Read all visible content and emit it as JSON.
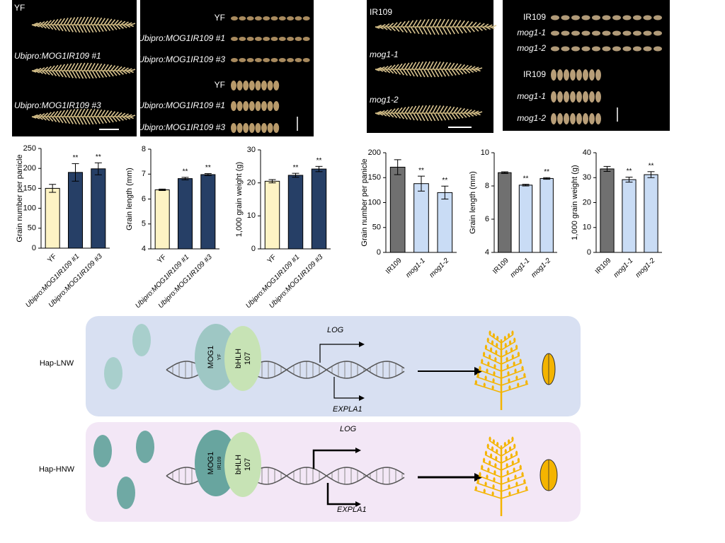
{
  "chart_data": [
    {
      "type": "bar",
      "ylabel": "Grain number per panicle",
      "categories": [
        "YF",
        "Ubipro:MOG1IR109 #1",
        "Ubipro:MOG1IR109 #3"
      ],
      "values": [
        150,
        190,
        199
      ],
      "errors": [
        10,
        22,
        15
      ],
      "significance": [
        null,
        "**",
        "**"
      ],
      "colors": [
        "#fdf3c4",
        "#263f66",
        "#263f66"
      ],
      "ylim": [
        0,
        250
      ],
      "yticks": [
        0,
        50,
        100,
        150,
        200,
        250
      ]
    },
    {
      "type": "bar",
      "ylabel": "Grain length (mm)",
      "categories": [
        "YF",
        "Ubipro:MOG1IR109 #1",
        "Ubipro:MOG1IR109 #3"
      ],
      "values": [
        6.37,
        6.82,
        6.98
      ],
      "errors": [
        0.03,
        0.05,
        0.04
      ],
      "significance": [
        null,
        "**",
        "**"
      ],
      "colors": [
        "#fdf3c4",
        "#263f66",
        "#263f66"
      ],
      "ylim": [
        4,
        8
      ],
      "yticks": [
        4,
        5,
        6,
        7,
        8
      ]
    },
    {
      "type": "bar",
      "ylabel": "1,000 grain weight (g)",
      "categories": [
        "YF",
        "Ubipro:MOG1IR109 #1",
        "Ubipro:MOG1IR109 #3"
      ],
      "values": [
        20.5,
        22.3,
        24.2
      ],
      "errors": [
        0.5,
        0.6,
        0.8
      ],
      "significance": [
        null,
        "**",
        "**"
      ],
      "colors": [
        "#fdf3c4",
        "#263f66",
        "#263f66"
      ],
      "ylim": [
        0,
        30
      ],
      "yticks": [
        0,
        10,
        20,
        30
      ]
    },
    {
      "type": "bar",
      "ylabel": "Grain number per panicle",
      "categories": [
        "IR109",
        "mog1-1",
        "mog1-2"
      ],
      "values": [
        171,
        138,
        120
      ],
      "errors": [
        15,
        15,
        13
      ],
      "significance": [
        null,
        "**",
        "**"
      ],
      "colors": [
        "#707070",
        "#c9dcf5",
        "#c9dcf5"
      ],
      "ylim": [
        0,
        200
      ],
      "yticks": [
        0,
        50,
        100,
        150,
        200
      ]
    },
    {
      "type": "bar",
      "ylabel": "Grain length (mm)",
      "categories": [
        "IR109",
        "mog1-1",
        "mog1-2"
      ],
      "values": [
        8.8,
        8.05,
        8.45
      ],
      "errors": [
        0.05,
        0.05,
        0.05
      ],
      "significance": [
        null,
        "**",
        "**"
      ],
      "colors": [
        "#707070",
        "#c9dcf5",
        "#c9dcf5"
      ],
      "ylim": [
        4,
        10
      ],
      "yticks": [
        4,
        6,
        8,
        10
      ]
    },
    {
      "type": "bar",
      "ylabel": "1,000 grain weight (g)",
      "categories": [
        "IR109",
        "mog1-1",
        "mog1-2"
      ],
      "values": [
        33.5,
        29.2,
        31.2
      ],
      "errors": [
        1,
        1,
        1.2
      ],
      "significance": [
        null,
        "**",
        "**"
      ],
      "colors": [
        "#707070",
        "#c9dcf5",
        "#c9dcf5"
      ],
      "ylim": [
        0,
        40
      ],
      "yticks": [
        0,
        10,
        20,
        30,
        40
      ]
    }
  ],
  "photos": {
    "panicles_a": [
      "YF",
      "Ubipro:MOG1IR109 #1",
      "Ubipro:MOG1IR109 #3"
    ],
    "grains_a": [
      "YF",
      "Ubipro:MOG1IR109 #1",
      "Ubipro:MOG1IR109 #3",
      "YF",
      "Ubipro:MOG1IR109 #1",
      "Ubipro:MOG1IR109 #3"
    ],
    "panicles_b": [
      "IR109",
      "mog1-1",
      "mog1-2"
    ],
    "grains_b": [
      "IR109",
      "mog1-1",
      "mog1-2",
      "IR109",
      "mog1-1",
      "mog1-2"
    ]
  },
  "diagram": {
    "panels": [
      {
        "label": "Hap-LNW",
        "protein": "MOG1",
        "allele": "YF",
        "partner": "bHLH",
        "partner_id": "107",
        "genes": [
          "LOG",
          "EXPLA1"
        ]
      },
      {
        "label": "Hap-HNW",
        "protein": "MOG1",
        "allele": "IR109",
        "partner": "bHLH",
        "partner_id": "107",
        "genes": [
          "LOG",
          "EXPLA1"
        ]
      }
    ]
  }
}
